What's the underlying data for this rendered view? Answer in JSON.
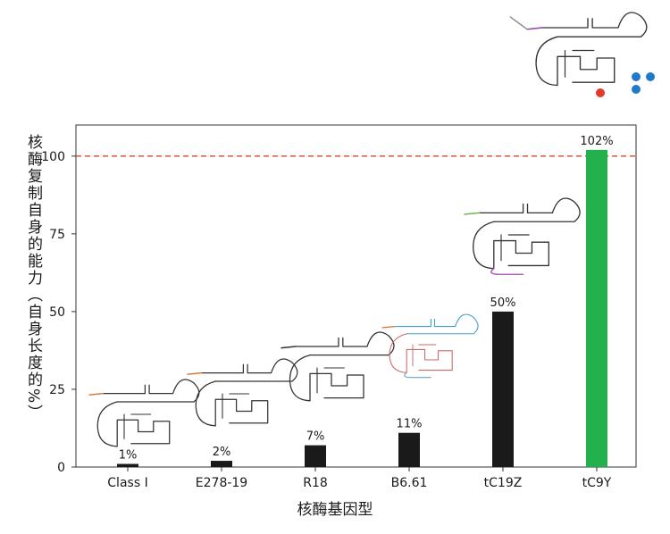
{
  "chart_data": {
    "type": "bar",
    "title": "",
    "xlabel": "核酶基因型",
    "ylabel": "核酶复制自身的能力（自身长度的%）",
    "categories": [
      "Class I",
      "E278-19",
      "R18",
      "B6.61",
      "tC19Z",
      "tC9Y"
    ],
    "values": [
      1,
      2,
      7,
      11,
      50,
      102
    ],
    "value_labels": [
      "1%",
      "2%",
      "7%",
      "11%",
      "50%",
      "102%"
    ],
    "bar_colors": [
      "#1a1a1a",
      "#1a1a1a",
      "#1a1a1a",
      "#1a1a1a",
      "#1a1a1a",
      "#22b14c"
    ],
    "ylim": [
      0,
      110
    ],
    "yticks": [
      0,
      25,
      50,
      75,
      100
    ],
    "ytick_labels": [
      "0",
      "25",
      "50",
      "75",
      "100"
    ],
    "reference_line": {
      "value": 100,
      "color": "#d9472b",
      "style": "dashed"
    },
    "grid": false,
    "annotations": "ribozyme secondary-structure sketches above bars"
  }
}
